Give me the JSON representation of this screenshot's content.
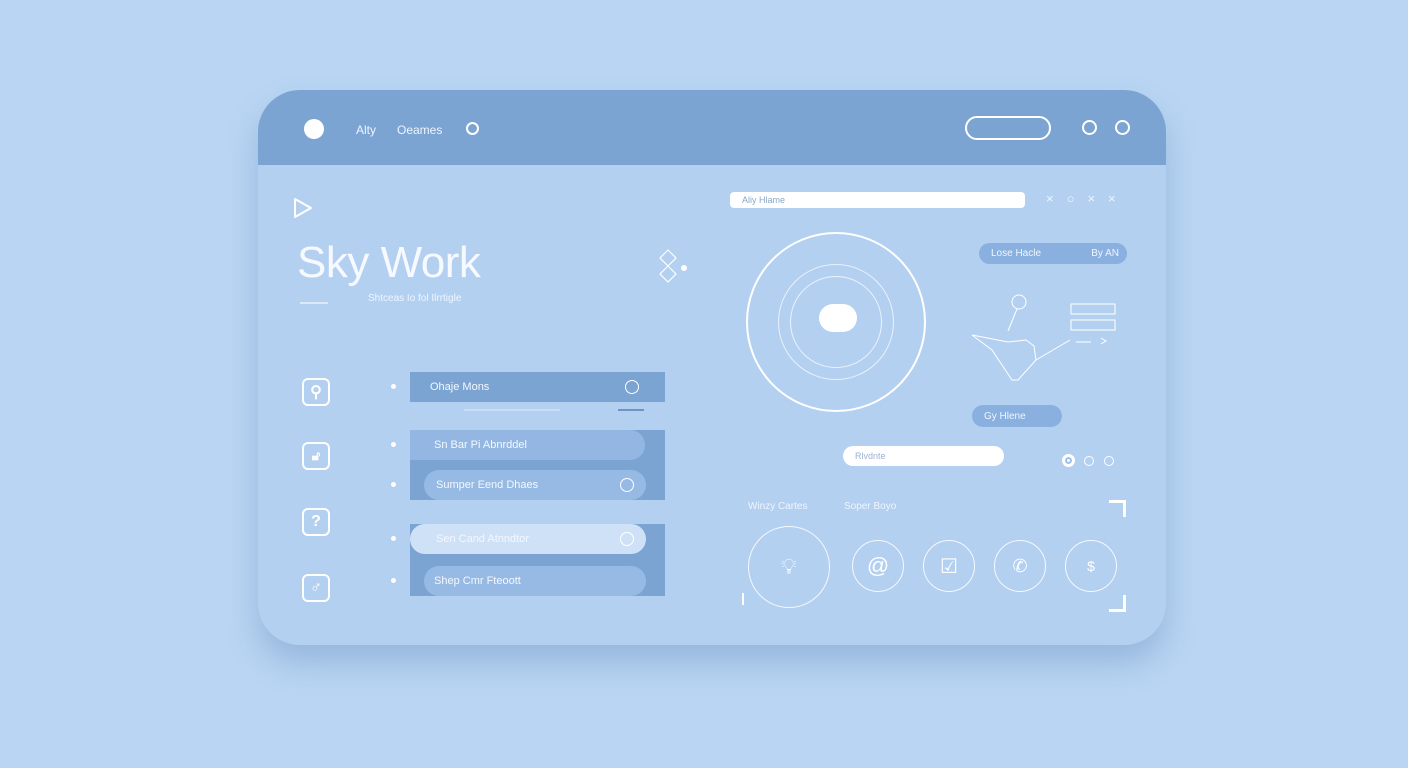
{
  "header": {
    "nav_items": [
      "Alty",
      "Oeames"
    ]
  },
  "hero": {
    "title": "Sky Work",
    "subtitle": "Shtceas Io fol Ilrrtigle"
  },
  "list": {
    "items": [
      {
        "label": "Ohaje Mons"
      },
      {
        "label": "Sn Bar Pi Abnrddel"
      },
      {
        "label": "Sumper Eend Dhaes"
      },
      {
        "label": "Sen Cand Atnndtor"
      },
      {
        "label": "Shep Cmr Fteoott"
      }
    ]
  },
  "right": {
    "search_placeholder": "Aliy Hlame",
    "tag_left": "Lose Hacle",
    "tag_right": "By AN",
    "tag2": "Gy Hlene",
    "input2_placeholder": "Rlvdnte",
    "label_a": "Winzy Cartes",
    "label_b": "Soper Boyo"
  },
  "accent": "#7ba4d3"
}
